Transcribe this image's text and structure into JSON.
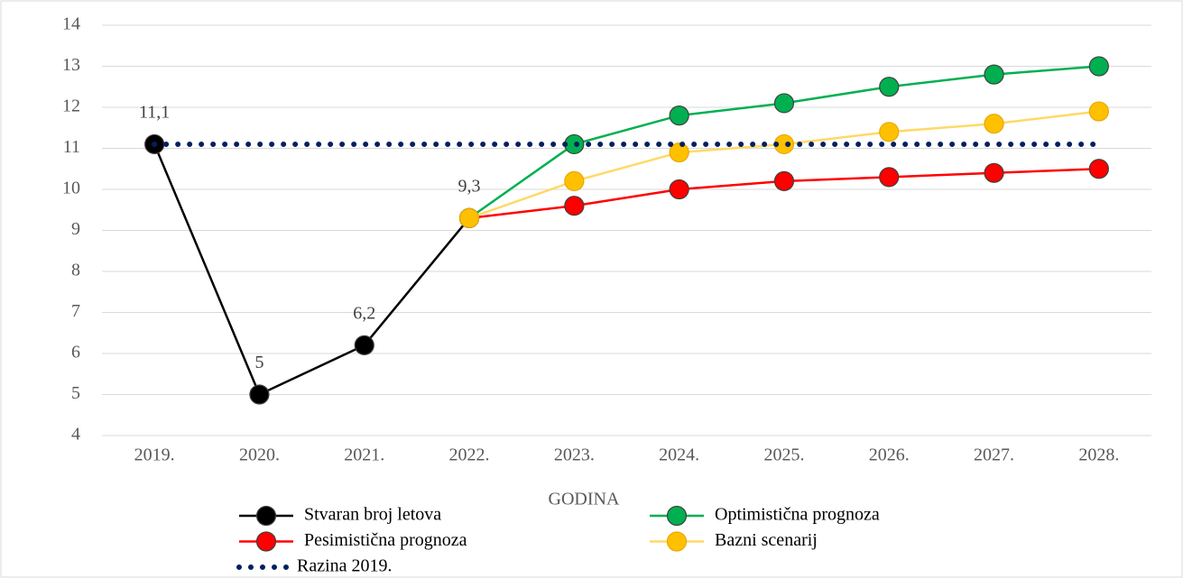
{
  "chart_data": {
    "type": "line",
    "x_label": "GODINA",
    "categories": [
      "2019.",
      "2020.",
      "2021.",
      "2022.",
      "2023.",
      "2024.",
      "2025.",
      "2026.",
      "2027.",
      "2028."
    ],
    "ylim": [
      4,
      14
    ],
    "yticks": [
      4,
      5,
      6,
      7,
      8,
      9,
      10,
      11,
      12,
      13,
      14
    ],
    "grid": true,
    "legend": "bottom",
    "series": [
      {
        "name": "Stvaran broj letova",
        "color": "#000000",
        "values": [
          11.1,
          5,
          6.2,
          9.3,
          null,
          null,
          null,
          null,
          null,
          null
        ],
        "value_labels": [
          "11,1",
          "5",
          "6,2",
          "9,3",
          null,
          null,
          null,
          null,
          null,
          null
        ]
      },
      {
        "name": "Optimistična prognoza",
        "color": "#00b050",
        "values": [
          null,
          null,
          null,
          9.3,
          11.1,
          11.8,
          12.1,
          12.5,
          12.8,
          13.0
        ]
      },
      {
        "name": "Pesimistična prognoza",
        "color": "#ff0000",
        "values": [
          null,
          null,
          null,
          9.3,
          9.6,
          10.0,
          10.2,
          10.3,
          10.4,
          10.5
        ]
      },
      {
        "name": "Bazni scenarij",
        "color": "#ffc000",
        "line_color": "#ffd966",
        "values": [
          null,
          null,
          null,
          9.3,
          10.2,
          10.9,
          11.1,
          11.4,
          11.6,
          11.9
        ]
      },
      {
        "name": "Razina 2019.",
        "color": "#002060",
        "dash": "dotted",
        "values": [
          11.1,
          11.1,
          11.1,
          11.1,
          11.1,
          11.1,
          11.1,
          11.1,
          11.1,
          11.1
        ]
      }
    ]
  }
}
